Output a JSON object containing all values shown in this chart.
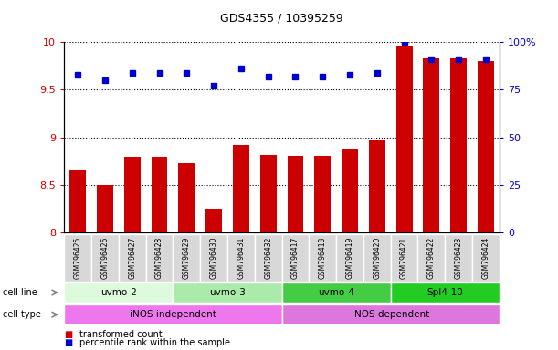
{
  "title": "GDS4355 / 10395259",
  "samples": [
    "GSM796425",
    "GSM796426",
    "GSM796427",
    "GSM796428",
    "GSM796429",
    "GSM796430",
    "GSM796431",
    "GSM796432",
    "GSM796417",
    "GSM796418",
    "GSM796419",
    "GSM796420",
    "GSM796421",
    "GSM796422",
    "GSM796423",
    "GSM796424"
  ],
  "transformed_count": [
    8.65,
    8.5,
    8.8,
    8.8,
    8.73,
    8.25,
    8.92,
    8.82,
    8.81,
    8.81,
    8.87,
    8.97,
    9.96,
    9.83,
    9.83,
    9.8
  ],
  "percentile_rank": [
    83,
    80,
    84,
    84,
    84,
    77,
    86,
    82,
    82,
    82,
    83,
    84,
    100,
    91,
    91,
    91
  ],
  "ylim_left": [
    8.0,
    10.0
  ],
  "ylim_right": [
    0,
    100
  ],
  "yticks_left": [
    8.0,
    8.5,
    9.0,
    9.5,
    10.0
  ],
  "yticks_right": [
    0,
    25,
    50,
    75,
    100
  ],
  "bar_color": "#cc0000",
  "dot_color": "#0000cc",
  "cell_lines": [
    {
      "label": "uvmo-2",
      "start": 0,
      "end": 4,
      "color": "#ddfadd"
    },
    {
      "label": "uvmo-3",
      "start": 4,
      "end": 8,
      "color": "#aaeaaa"
    },
    {
      "label": "uvmo-4",
      "start": 8,
      "end": 12,
      "color": "#44cc44"
    },
    {
      "label": "Spl4-10",
      "start": 12,
      "end": 16,
      "color": "#22cc22"
    }
  ],
  "cell_types": [
    {
      "label": "iNOS independent",
      "start": 0,
      "end": 8,
      "color": "#ee77ee"
    },
    {
      "label": "iNOS dependent",
      "start": 8,
      "end": 16,
      "color": "#dd77dd"
    }
  ],
  "legend_items": [
    {
      "label": "transformed count",
      "color": "#cc0000"
    },
    {
      "label": "percentile rank within the sample",
      "color": "#0000cc"
    }
  ],
  "sample_box_color": "#d8d8d8",
  "sample_box_border": "#aaaaaa"
}
